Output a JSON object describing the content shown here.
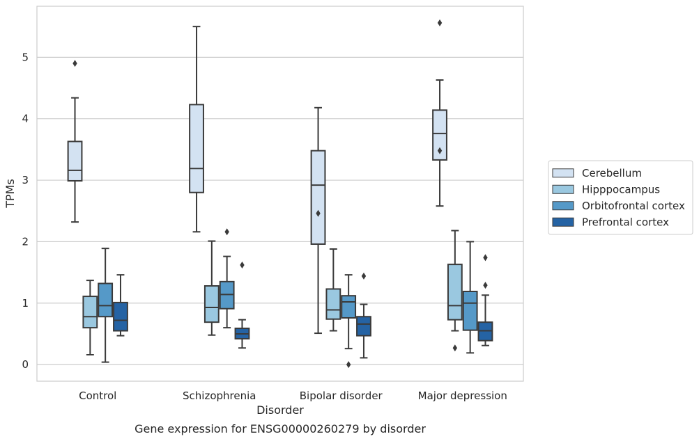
{
  "chart_data": {
    "type": "box",
    "title": "Gene expression for ENSG00000260279 by disorder",
    "xlabel": "Disorder",
    "ylabel": "TPMs",
    "ylim": [
      -0.27,
      5.83
    ],
    "yticks": [
      0,
      1,
      2,
      3,
      4,
      5
    ],
    "grid": "horizontal",
    "legend_position": "right",
    "categories": [
      "Control",
      "Schizophrenia",
      "Bipolar disorder",
      "Major depression"
    ],
    "series": [
      {
        "name": "Cerebellum",
        "color": "#d3e2f2",
        "boxes": [
          {
            "whisker_low": 2.32,
            "q1": 2.99,
            "median": 3.16,
            "q3": 3.63,
            "whisker_high": 4.34,
            "outliers": [
              4.9
            ]
          },
          {
            "whisker_low": 2.16,
            "q1": 2.8,
            "median": 3.19,
            "q3": 4.23,
            "whisker_high": 5.5,
            "outliers": []
          },
          {
            "whisker_low": 0.51,
            "q1": 1.96,
            "median": 2.92,
            "q3": 3.48,
            "whisker_high": 4.18,
            "outliers": [
              2.46
            ]
          },
          {
            "whisker_low": 2.58,
            "q1": 3.33,
            "median": 3.76,
            "q3": 4.14,
            "whisker_high": 4.63,
            "outliers": [
              5.56,
              3.48
            ]
          }
        ]
      },
      {
        "name": "Hipppocampus",
        "color": "#9ac8e0",
        "boxes": [
          {
            "whisker_low": 0.16,
            "q1": 0.6,
            "median": 0.78,
            "q3": 1.11,
            "whisker_high": 1.37,
            "outliers": []
          },
          {
            "whisker_low": 0.48,
            "q1": 0.69,
            "median": 0.93,
            "q3": 1.28,
            "whisker_high": 2.01,
            "outliers": []
          },
          {
            "whisker_low": 0.55,
            "q1": 0.74,
            "median": 0.89,
            "q3": 1.23,
            "whisker_high": 1.88,
            "outliers": []
          },
          {
            "whisker_low": 0.55,
            "q1": 0.73,
            "median": 0.96,
            "q3": 1.63,
            "whisker_high": 2.18,
            "outliers": [
              0.27
            ]
          }
        ]
      },
      {
        "name": "Orbitofrontal cortex",
        "color": "#5599c8",
        "boxes": [
          {
            "whisker_low": 0.04,
            "q1": 0.78,
            "median": 0.96,
            "q3": 1.32,
            "whisker_high": 1.89,
            "outliers": []
          },
          {
            "whisker_low": 0.6,
            "q1": 0.91,
            "median": 1.14,
            "q3": 1.35,
            "whisker_high": 1.76,
            "outliers": [
              2.16
            ]
          },
          {
            "whisker_low": 0.26,
            "q1": 0.76,
            "median": 1.02,
            "q3": 1.12,
            "whisker_high": 1.46,
            "outliers": [
              0.0
            ]
          },
          {
            "whisker_low": 0.19,
            "q1": 0.56,
            "median": 1.0,
            "q3": 1.19,
            "whisker_high": 2.0,
            "outliers": []
          }
        ]
      },
      {
        "name": "Prefrontal cortex",
        "color": "#2563a4",
        "boxes": [
          {
            "whisker_low": 0.47,
            "q1": 0.55,
            "median": 0.72,
            "q3": 1.01,
            "whisker_high": 1.46,
            "outliers": []
          },
          {
            "whisker_low": 0.27,
            "q1": 0.42,
            "median": 0.5,
            "q3": 0.59,
            "whisker_high": 0.73,
            "outliers": [
              1.62
            ]
          },
          {
            "whisker_low": 0.11,
            "q1": 0.47,
            "median": 0.66,
            "q3": 0.78,
            "whisker_high": 0.98,
            "outliers": [
              1.44
            ]
          },
          {
            "whisker_low": 0.31,
            "q1": 0.39,
            "median": 0.55,
            "q3": 0.69,
            "whisker_high": 1.13,
            "outliers": [
              1.74,
              1.29
            ]
          }
        ]
      }
    ]
  }
}
